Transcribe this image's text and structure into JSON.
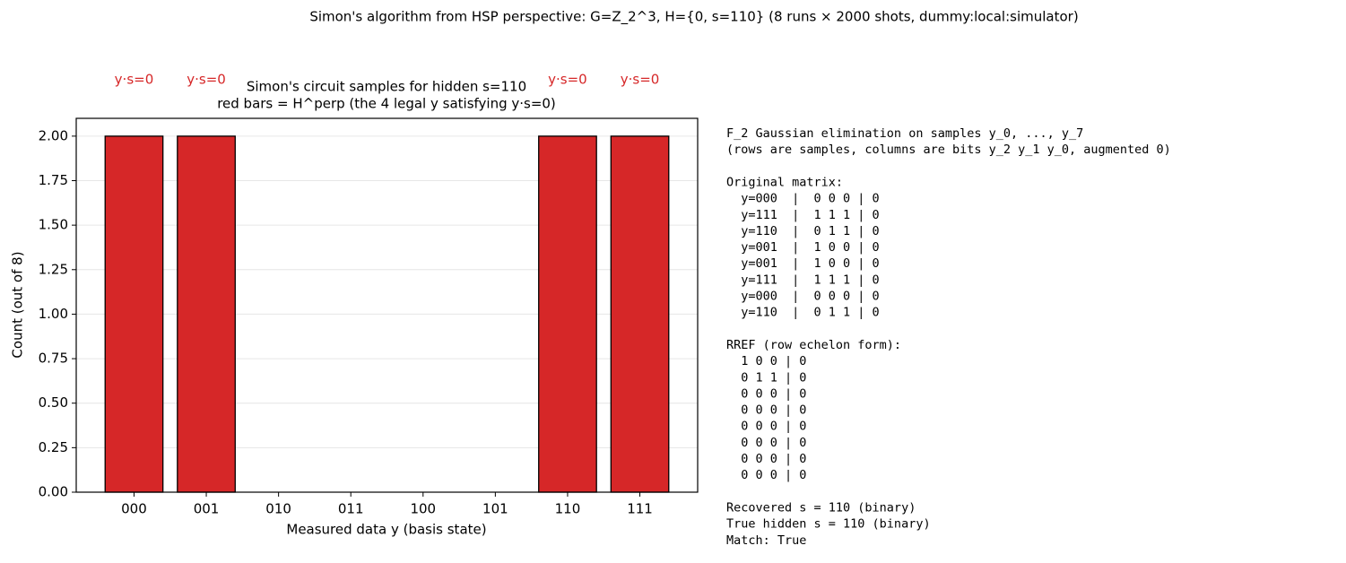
{
  "figure_title": "Simon's algorithm from HSP perspective: G=Z_2^3, H={0, s=110}  (8 runs × 2000 shots, dummy:local:simulator)",
  "chart_data": {
    "type": "bar",
    "title": "Simon's circuit samples for hidden s=110",
    "subtitle": "red bars = H^perp (the 4 legal y satisfying y·s=0)",
    "x_label": "Measured data y (basis state)",
    "y_label": "Count (out of 8)",
    "categories": [
      "000",
      "001",
      "010",
      "011",
      "100",
      "101",
      "110",
      "111"
    ],
    "values": [
      2,
      2,
      0,
      0,
      0,
      0,
      2,
      2
    ],
    "annotations": [
      "y·s=0",
      "y·s=0",
      null,
      null,
      null,
      null,
      "y·s=0",
      "y·s=0"
    ],
    "color": "#d62728",
    "ylim": [
      0,
      2.1
    ],
    "yticks": [
      {
        "value": 0,
        "label": "0.00"
      },
      {
        "value": 0.25,
        "label": "0.25"
      },
      {
        "value": 0.5,
        "label": "0.50"
      },
      {
        "value": 0.75,
        "label": "0.75"
      },
      {
        "value": 1,
        "label": "1.00"
      },
      {
        "value": 1.25,
        "label": "1.25"
      },
      {
        "value": 1.5,
        "label": "1.50"
      },
      {
        "value": 1.75,
        "label": "1.75"
      },
      {
        "value": 2,
        "label": "2.00"
      }
    ],
    "grid": true
  },
  "text_panel": {
    "blocks": [
      [
        "F_2 Gaussian elimination on samples y_0, ..., y_7",
        "(rows are samples, columns are bits y_2 y_1 y_0, augmented 0)"
      ],
      [
        "Original matrix:",
        "  y=000  |  0 0 0 | 0",
        "  y=111  |  1 1 1 | 0",
        "  y=110  |  0 1 1 | 0",
        "  y=001  |  1 0 0 | 0",
        "  y=001  |  1 0 0 | 0",
        "  y=111  |  1 1 1 | 0",
        "  y=000  |  0 0 0 | 0",
        "  y=110  |  0 1 1 | 0"
      ],
      [
        "RREF (row echelon form):",
        "  1 0 0 | 0",
        "  0 1 1 | 0",
        "  0 0 0 | 0",
        "  0 0 0 | 0",
        "  0 0 0 | 0",
        "  0 0 0 | 0",
        "  0 0 0 | 0",
        "  0 0 0 | 0"
      ],
      [
        "Recovered s = 110 (binary)",
        "True hidden s = 110 (binary)",
        "Match: True"
      ]
    ]
  }
}
